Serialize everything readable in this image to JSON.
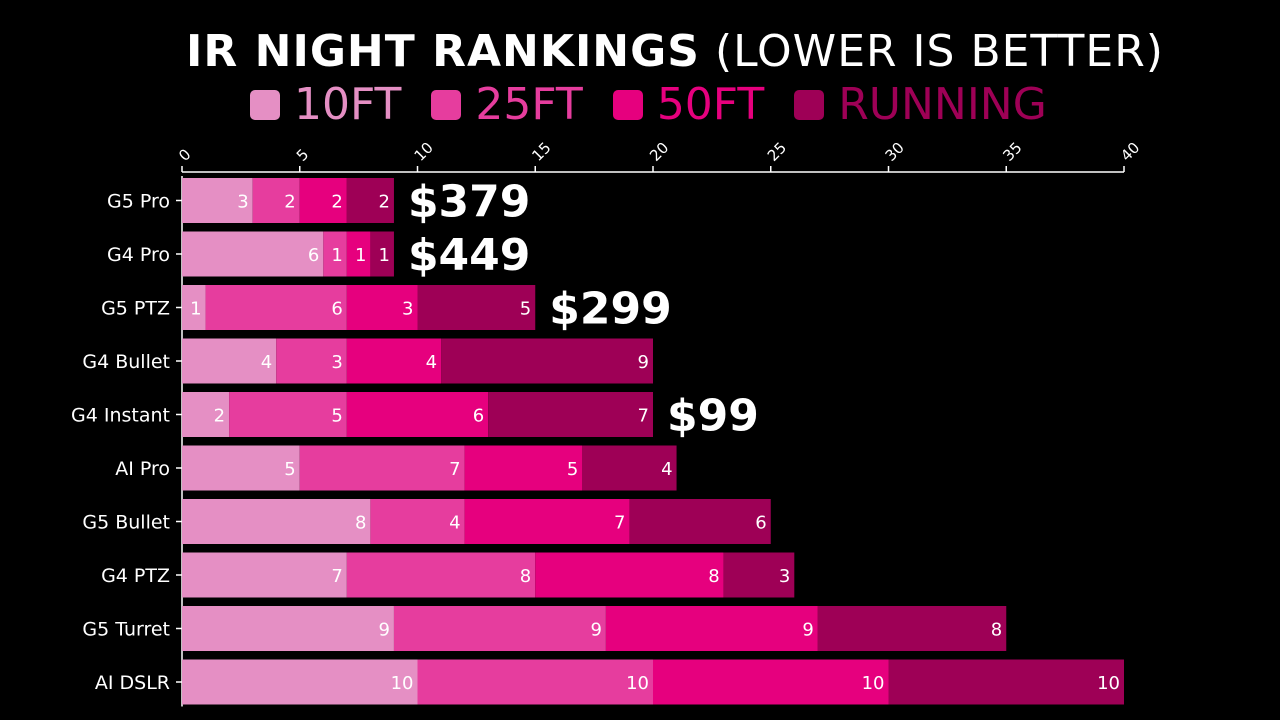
{
  "title": {
    "bold": "IR NIGHT RANKINGS",
    "light": "(LOWER IS BETTER)"
  },
  "chart_data": {
    "type": "bar",
    "orientation": "horizontal",
    "stacked": true,
    "title": "IR NIGHT RANKINGS (LOWER IS BETTER)",
    "categories": [
      "G5 Pro",
      "G4 Pro",
      "G5 PTZ",
      "G4 Bullet",
      "G4 Instant",
      "AI Pro",
      "G5 Bullet",
      "G4 PTZ",
      "G5 Turret",
      "AI DSLR"
    ],
    "series": [
      {
        "name": "10FT",
        "color": "#e58fc4",
        "values": [
          3,
          6,
          1,
          4,
          2,
          5,
          8,
          7,
          9,
          10
        ]
      },
      {
        "name": "25FT",
        "color": "#e63d9e",
        "values": [
          2,
          1,
          6,
          3,
          5,
          7,
          4,
          8,
          9,
          10
        ]
      },
      {
        "name": "50FT",
        "color": "#e6007e",
        "values": [
          2,
          1,
          3,
          4,
          6,
          5,
          7,
          8,
          9,
          10
        ]
      },
      {
        "name": "RUNNING",
        "color": "#9e0056",
        "values": [
          2,
          1,
          5,
          9,
          7,
          4,
          6,
          3,
          8,
          10
        ]
      }
    ],
    "annotations": [
      {
        "category": "G5 Pro",
        "text": "$379"
      },
      {
        "category": "G4 Pro",
        "text": "$449"
      },
      {
        "category": "G5 PTZ",
        "text": "$299"
      },
      {
        "category": "G4 Instant",
        "text": "$99"
      }
    ],
    "xlim": [
      0,
      40
    ],
    "xticks": [
      0,
      5,
      10,
      15,
      20,
      25,
      30,
      35,
      40
    ],
    "xaxis_position": "top",
    "legend_position": "top",
    "grid": false
  }
}
